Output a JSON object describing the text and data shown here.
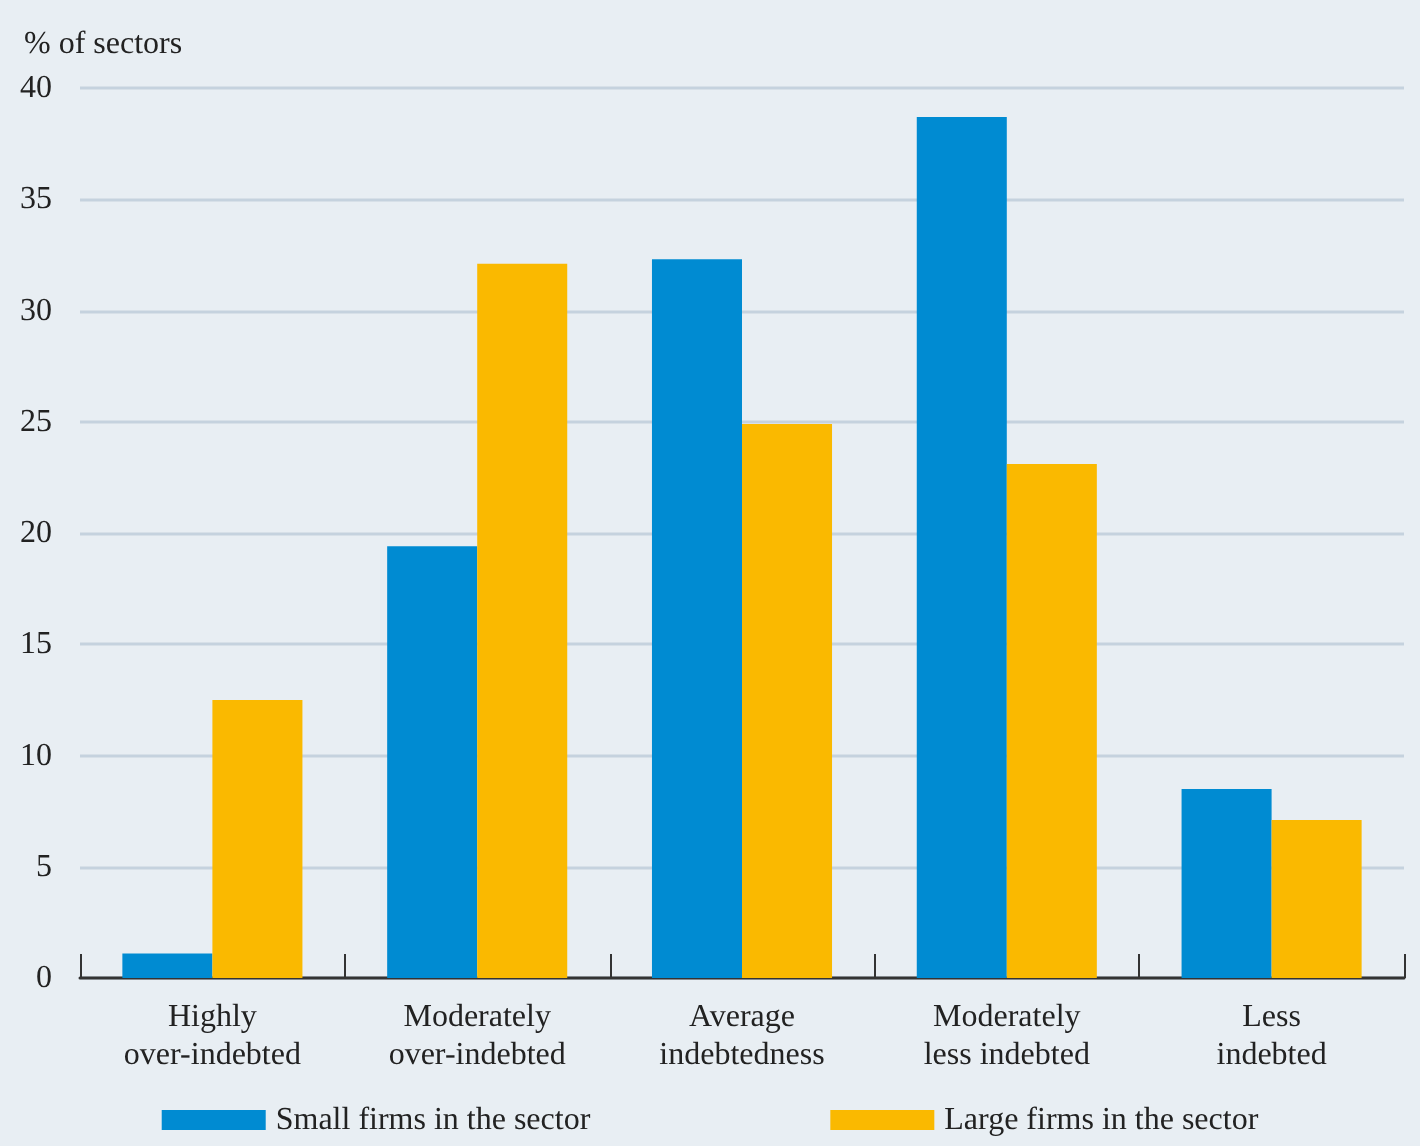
{
  "chart_data": {
    "type": "bar",
    "ylabel": "% of sectors",
    "categories": [
      "Highly\nover-indebted",
      "Moderately\nover-indebted",
      "Average\nindebtedness",
      "Moderately\nless indebted",
      "Less\nindebted"
    ],
    "series": [
      {
        "name": "Small firms in the sector",
        "color": "#008bd2",
        "values": [
          1.1,
          19.4,
          32.3,
          38.7,
          8.5
        ]
      },
      {
        "name": "Large firms in the sector",
        "color": "#fab900",
        "values": [
          12.5,
          32.1,
          24.9,
          23.1,
          7.1
        ]
      }
    ],
    "ylim": [
      0,
      40
    ],
    "yticks": [
      0,
      5,
      10,
      15,
      20,
      25,
      30,
      35,
      40
    ],
    "grid": "y",
    "legend": "bottom"
  }
}
